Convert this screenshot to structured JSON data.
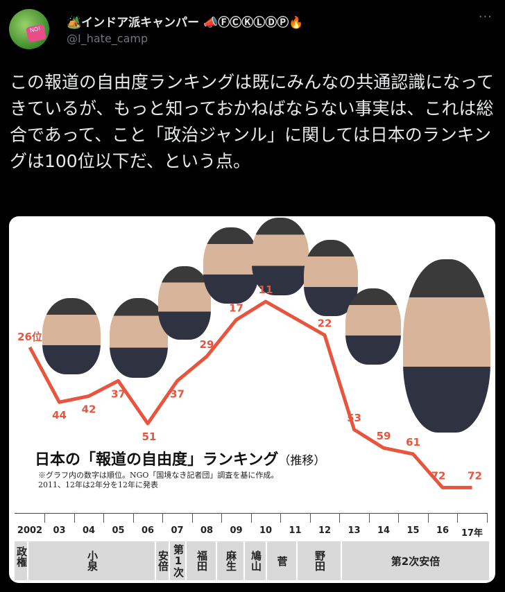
{
  "user": {
    "display_name": "🏕️インドア派キャンパー 📣ⒻⒸⓀⓁⒹⓅ🔥",
    "handle": "@I_hate_camp",
    "avatar_tag": "NO!"
  },
  "more_label": "···",
  "tweet_text": "この報道の自由度ランキングは既にみんなの共通認識になってきているが、もっと知っておかねばならない事実は、これは総合であって、こと「政治ジャンル」に関しては日本のランキングは100位以下だ、という点。",
  "chart_data": {
    "type": "line",
    "title": "日本の「報道の自由度」ランキング",
    "title_suffix": "（推移）",
    "note_lines": [
      "※グラフ内の数字は順位。NGO「国境なき記者団」調査を基に作成。",
      "2011、12年は2年分を12年に発表"
    ],
    "x": [
      2002,
      2003,
      2004,
      2005,
      2006,
      2007,
      2008,
      2009,
      2010,
      2012,
      2013,
      2014,
      2015,
      2016,
      2017
    ],
    "values": [
      26,
      44,
      42,
      37,
      51,
      37,
      29,
      17,
      11,
      22,
      53,
      59,
      61,
      72,
      72
    ],
    "point_labels": [
      "26位",
      "44",
      "42",
      "37",
      "51",
      "37",
      "29",
      "17",
      "11",
      "22",
      "53",
      "59",
      "61",
      "72",
      "72"
    ],
    "y_inverted": true,
    "line_color": "#e8553e",
    "year_labels": [
      "2002",
      "03",
      "04",
      "05",
      "06",
      "07",
      "08",
      "09",
      "10",
      "11",
      "12",
      "13",
      "14",
      "15",
      "16",
      "17年"
    ],
    "pm_row_label": "政権",
    "prime_ministers": [
      "小泉",
      "安倍",
      "第1次",
      "福田",
      "麻生",
      "鳩山",
      "菅",
      "野田",
      "第2次安倍"
    ]
  }
}
